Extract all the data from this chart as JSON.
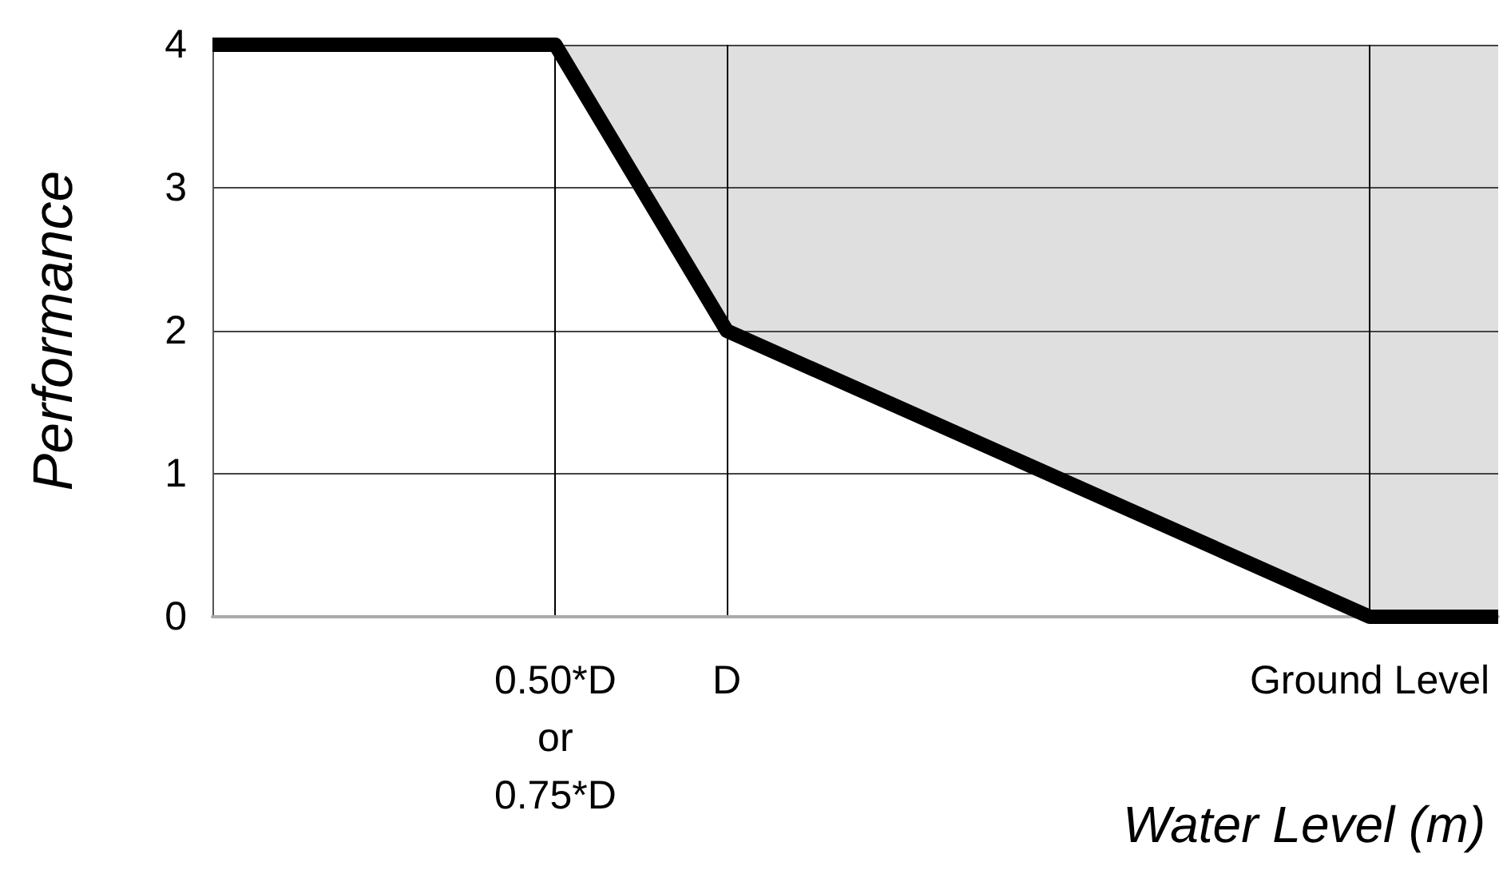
{
  "chart_data": {
    "type": "line",
    "xlabel": "Water Level (m)",
    "ylabel": "Performance",
    "categories": [
      null,
      null,
      null,
      null,
      null,
      null,
      null,
      null,
      "0.50*D\nor\n0.75*D",
      null,
      null,
      null,
      "D",
      null,
      null,
      null,
      null,
      null,
      null,
      null,
      null,
      null,
      null,
      null,
      null,
      null,
      null,
      "Ground Level",
      null,
      null,
      null
    ],
    "series": [
      {
        "color": "#000000",
        "values": [
          4,
          null,
          null,
          null,
          null,
          null,
          null,
          null,
          4,
          null,
          null,
          null,
          2,
          null,
          null,
          null,
          null,
          null,
          null,
          null,
          null,
          null,
          null,
          null,
          null,
          null,
          null,
          0,
          null,
          null,
          0
        ],
        "lower": [
          null,
          null,
          null,
          null,
          null,
          null,
          null,
          null,
          4,
          null,
          null,
          null,
          2,
          null,
          null,
          null,
          null,
          null,
          null,
          null,
          null,
          null,
          null,
          null,
          null,
          null,
          null,
          0,
          null,
          null,
          0
        ],
        "upper": [
          null,
          null,
          null,
          null,
          null,
          null,
          null,
          null,
          4,
          null,
          null,
          null,
          4,
          null,
          null,
          null,
          null,
          null,
          null,
          null,
          null,
          null,
          null,
          null,
          null,
          null,
          null,
          4,
          null,
          null,
          4
        ]
      }
    ],
    "ylim": [
      0,
      4
    ],
    "yticks": [
      0,
      1,
      2,
      3,
      4
    ],
    "grid": true,
    "marker": "none",
    "line_style": "solid"
  }
}
